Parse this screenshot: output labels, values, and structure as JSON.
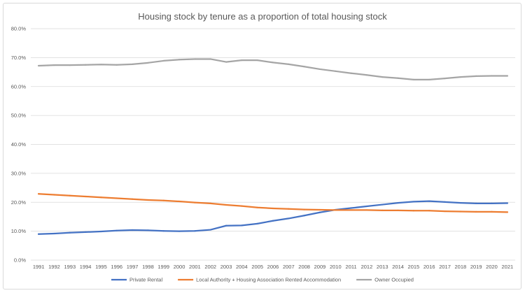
{
  "chart_data": {
    "type": "line",
    "title": "Housing stock by tenure as a proportion of total housing stock",
    "xlabel": "",
    "ylabel": "",
    "ylim": [
      0,
      80
    ],
    "y_ticks": [
      "0.0%",
      "10.0%",
      "20.0%",
      "30.0%",
      "40.0%",
      "50.0%",
      "60.0%",
      "70.0%",
      "80.0%"
    ],
    "grid": true,
    "legend_position": "bottom",
    "categories": [
      "1991",
      "1992",
      "1993",
      "1994",
      "1995",
      "1996",
      "1997",
      "1998",
      "1999",
      "2000",
      "2001",
      "2002",
      "2003",
      "2004",
      "2005",
      "2006",
      "2007",
      "2008",
      "2009",
      "2010",
      "2011",
      "2012",
      "2013",
      "2014",
      "2015",
      "2016",
      "2017",
      "2018",
      "2019",
      "2020",
      "2021"
    ],
    "series": [
      {
        "name": "Private Rental",
        "color": "#4472c4",
        "values": [
          9.0,
          9.2,
          9.5,
          9.7,
          9.9,
          10.2,
          10.4,
          10.3,
          10.1,
          10.0,
          10.1,
          10.5,
          11.9,
          12.0,
          12.6,
          13.6,
          14.4,
          15.4,
          16.5,
          17.4,
          18.0,
          18.6,
          19.2,
          19.8,
          20.2,
          20.4,
          20.1,
          19.8,
          19.6,
          19.6,
          19.7
        ],
        "labels": []
      },
      {
        "name": "Local Authority + Housing Association Rented Accommodation",
        "color": "#ed7d31",
        "values": [
          22.9,
          22.6,
          22.3,
          22.0,
          21.7,
          21.4,
          21.1,
          20.8,
          20.6,
          20.3,
          19.9,
          19.6,
          19.1,
          18.7,
          18.2,
          17.9,
          17.7,
          17.5,
          17.4,
          17.3,
          17.3,
          17.3,
          17.2,
          17.2,
          17.1,
          17.1,
          16.9,
          16.8,
          16.7,
          16.7,
          16.6
        ],
        "labels": []
      },
      {
        "name": "Owner Occupied",
        "color": "#a5a5a5",
        "values": [
          67.2,
          67.4,
          67.4,
          67.5,
          67.6,
          67.5,
          67.7,
          68.2,
          68.9,
          69.3,
          69.5,
          69.5,
          68.5,
          69.1,
          69.1,
          68.3,
          67.7,
          66.9,
          66.0,
          65.3,
          64.6,
          64.0,
          63.3,
          62.9,
          62.4,
          62.4,
          62.8,
          63.3,
          63.6,
          63.7,
          63.7
        ],
        "labels": []
      }
    ]
  }
}
